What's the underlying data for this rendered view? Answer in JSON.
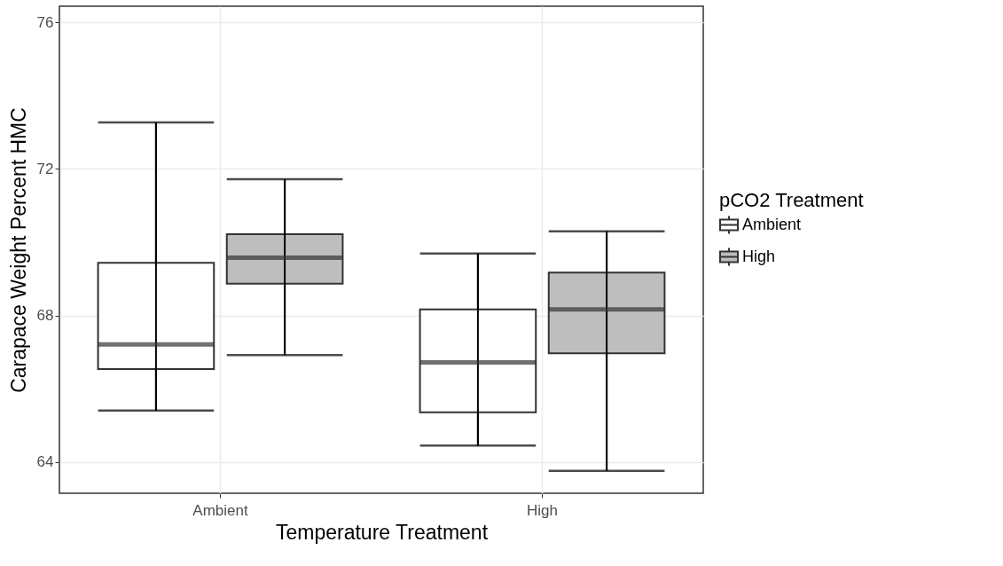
{
  "chart_data": {
    "type": "box",
    "xlabel": "Temperature Treatment",
    "ylabel": "Carapace Weight Percent HMC",
    "legend_title": "pCO2 Treatment",
    "categories": [
      "Ambient",
      "High"
    ],
    "ylim": [
      63.15,
      76.44
    ],
    "yticks": [
      64,
      68,
      72,
      76
    ],
    "grid": true,
    "legend": "right",
    "series": [
      {
        "name": "Ambient",
        "color": "#ffffff",
        "boxes": [
          {
            "low": 65.41,
            "q1": 66.54,
            "median": 67.21,
            "q3": 69.44,
            "high": 73.27
          },
          {
            "low": 64.45,
            "q1": 65.36,
            "median": 66.72,
            "q3": 68.17,
            "high": 69.69
          }
        ]
      },
      {
        "name": "High",
        "color": "#bebebe",
        "boxes": [
          {
            "low": 66.92,
            "q1": 68.87,
            "median": 69.58,
            "q3": 70.22,
            "high": 71.72
          },
          {
            "low": 63.76,
            "q1": 66.97,
            "median": 68.17,
            "q3": 69.17,
            "high": 70.3
          }
        ]
      }
    ]
  }
}
